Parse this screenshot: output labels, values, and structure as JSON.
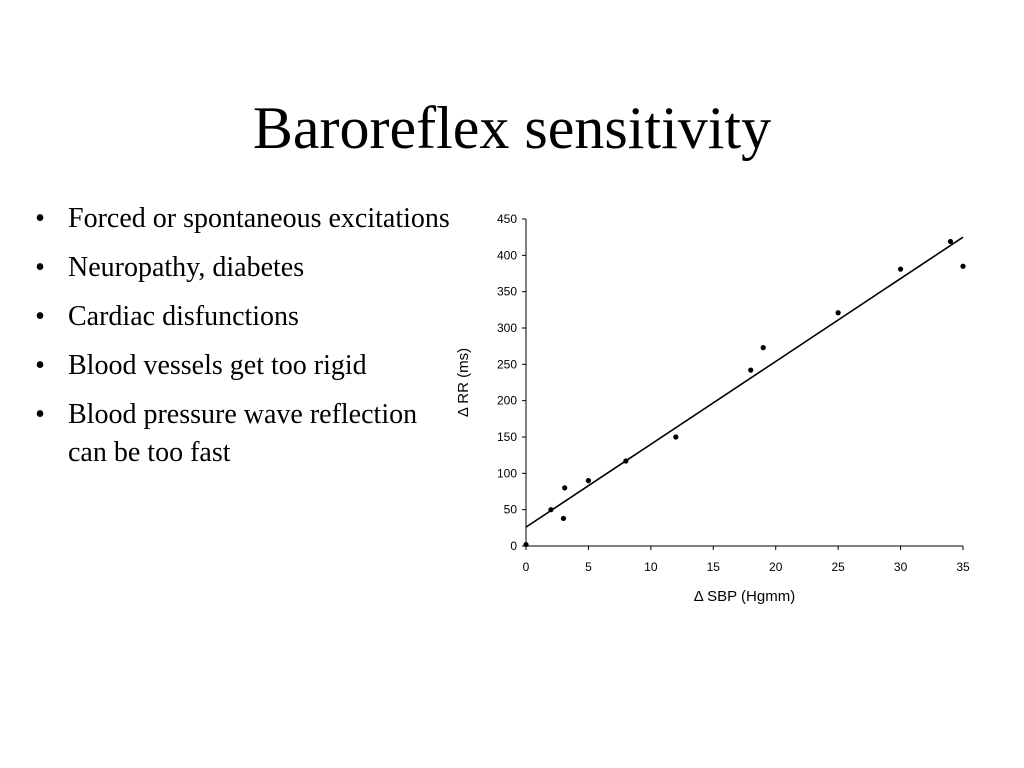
{
  "slide": {
    "title": "Baroreflex sensitivity",
    "bullets": [
      "Forced or spontaneous excitations",
      "Neuropathy, diabetes",
      "Cardiac disfunctions",
      "Blood vessels get too rigid",
      "Blood pressure wave reflection can be too fast"
    ],
    "bullet_glyph": "•"
  },
  "chart_data": {
    "type": "scatter",
    "title": "",
    "xlabel": "Δ SBP (Hgmm)",
    "ylabel": "Δ RR (ms)",
    "xlim": [
      0,
      35
    ],
    "ylim": [
      0,
      450
    ],
    "xticks": [
      0,
      5,
      10,
      15,
      20,
      25,
      30,
      35
    ],
    "yticks": [
      0,
      50,
      100,
      150,
      200,
      250,
      300,
      350,
      400,
      450
    ],
    "grid": false,
    "legend": "none",
    "series": [
      {
        "points": [
          [
            0,
            2
          ],
          [
            2,
            50
          ],
          [
            3,
            38
          ],
          [
            3.1,
            80
          ],
          [
            5,
            90
          ],
          [
            8,
            117
          ],
          [
            12,
            150
          ],
          [
            18,
            242
          ],
          [
            19,
            273
          ],
          [
            25,
            321
          ],
          [
            30,
            381
          ],
          [
            34,
            419
          ],
          [
            35,
            385
          ]
        ]
      }
    ],
    "trendline": {
      "x": [
        0,
        35
      ],
      "y": [
        26,
        425
      ]
    },
    "colors": {
      "marker": "#000000",
      "line": "#000000",
      "axis": "#000000"
    }
  }
}
